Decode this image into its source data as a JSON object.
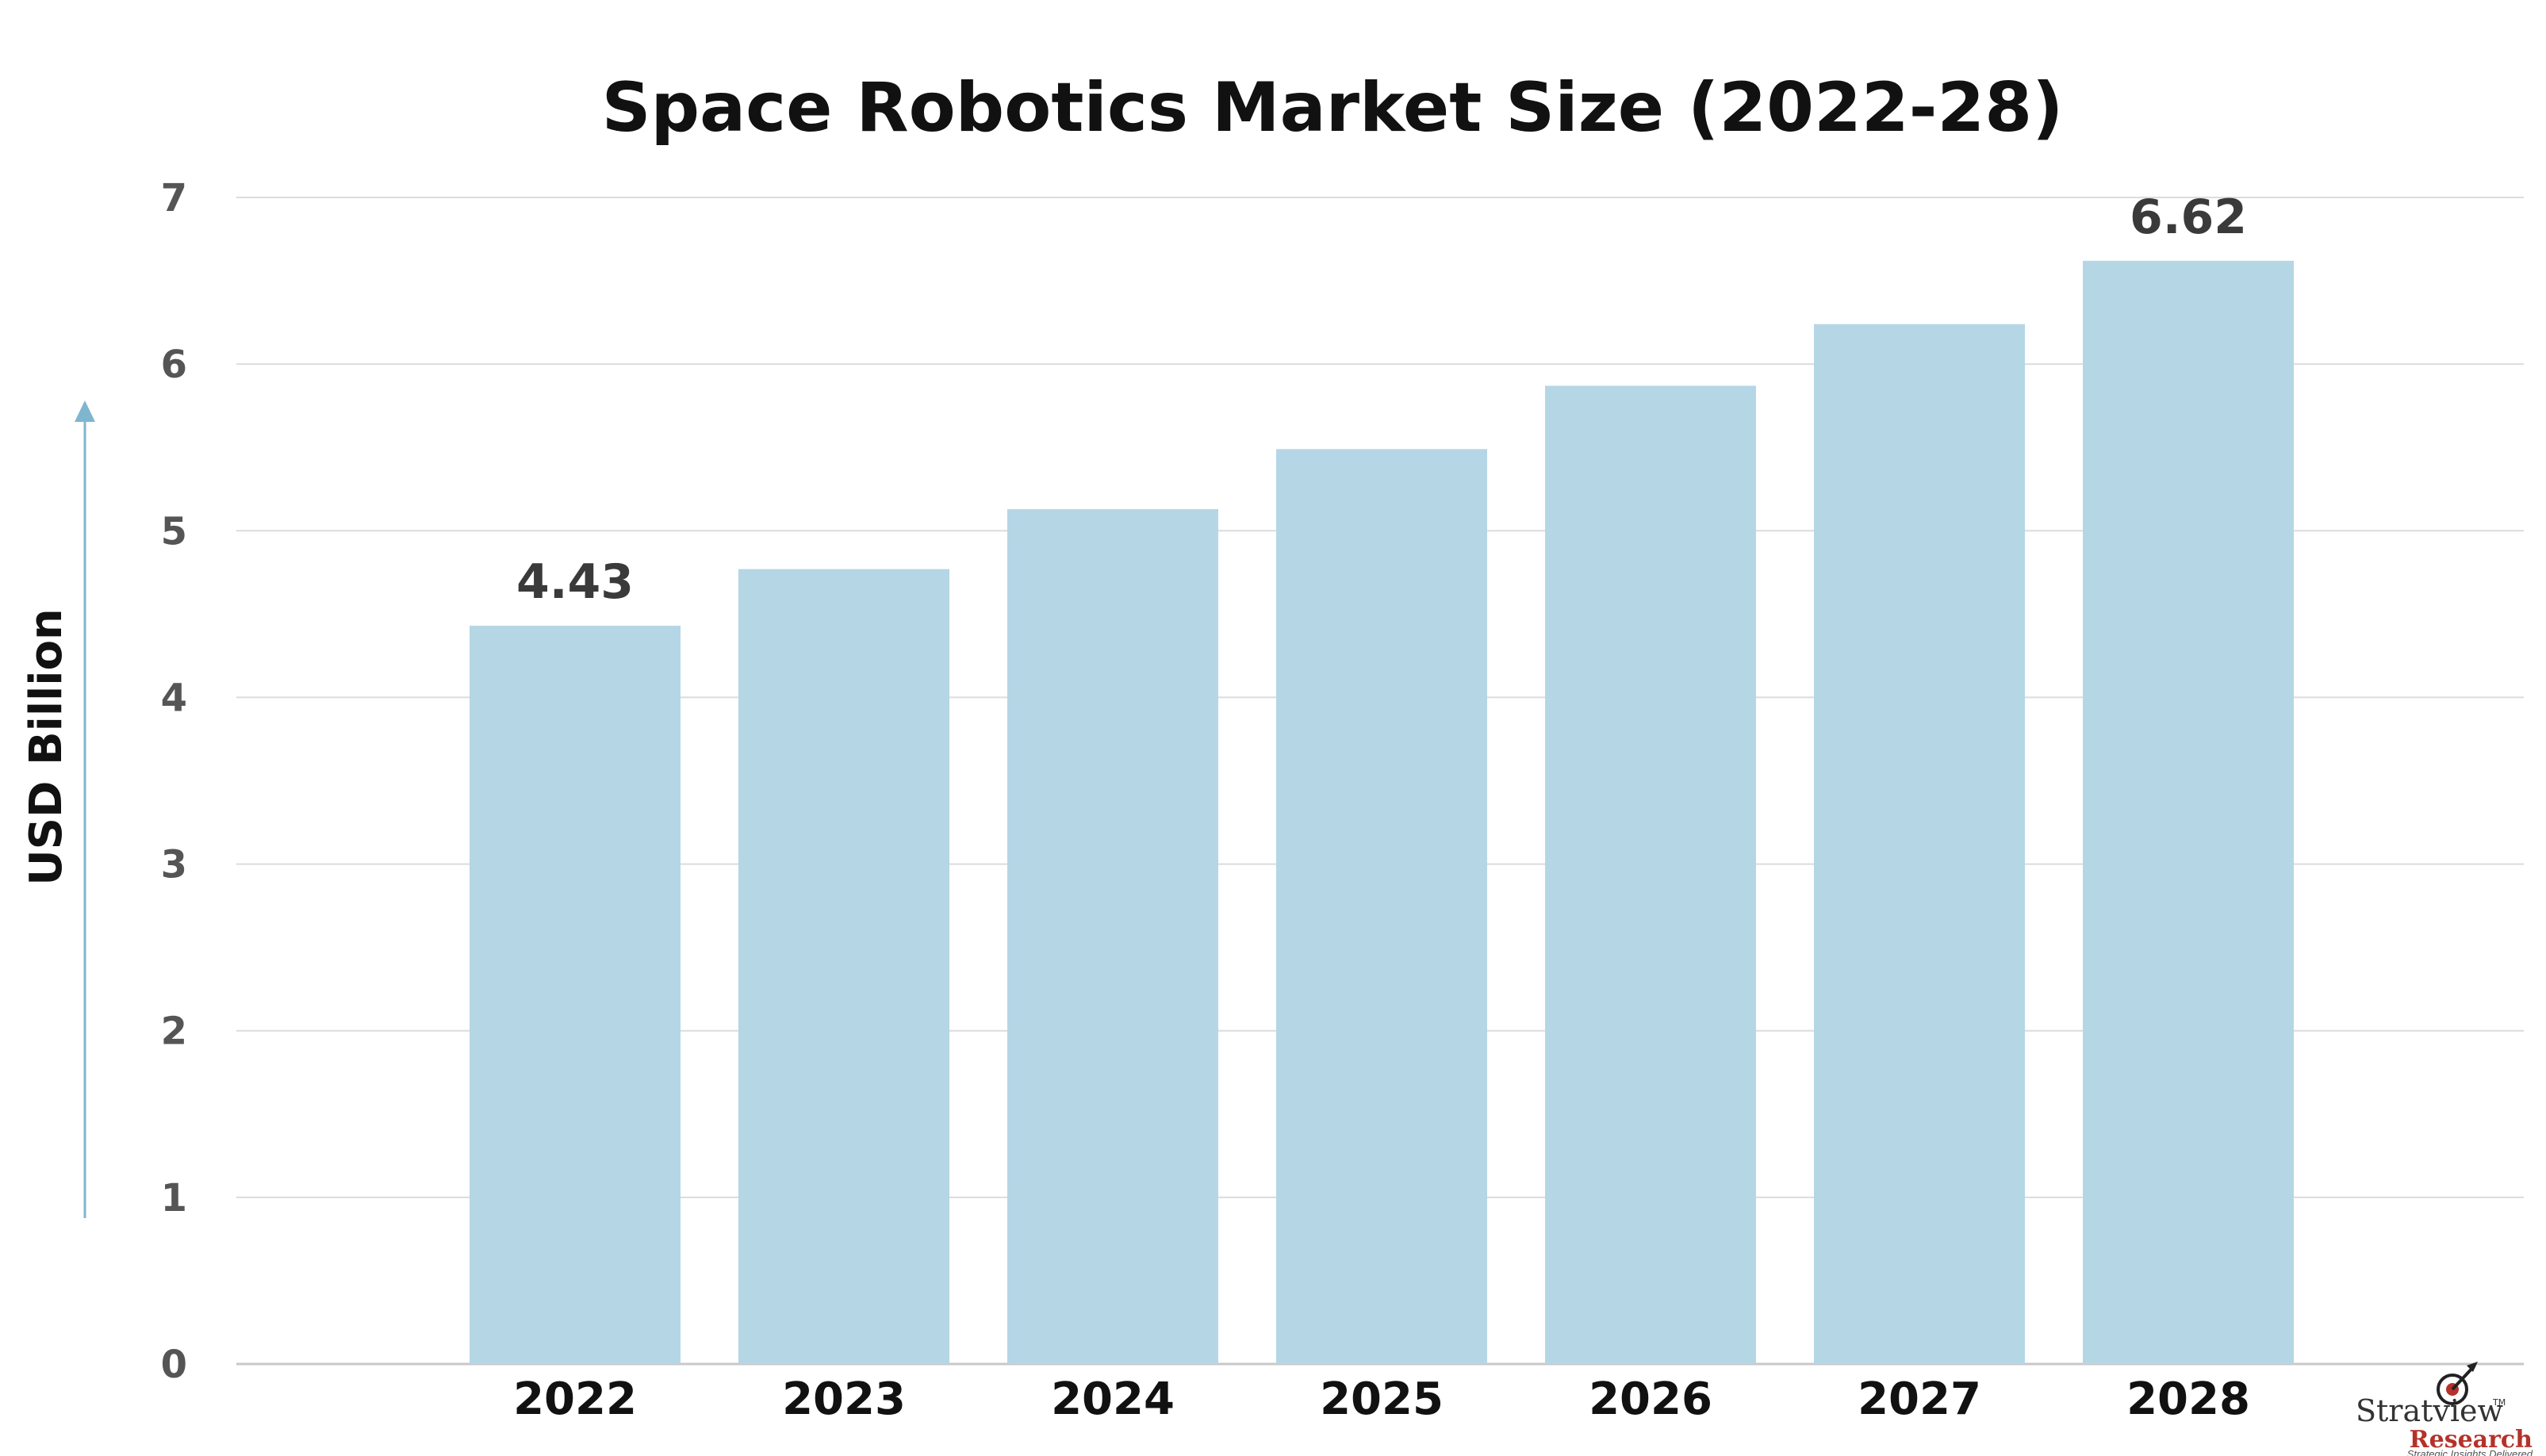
{
  "chart_data": {
    "type": "bar",
    "title": "Space Robotics Market Size (2022-28)",
    "ylabel": "USD Billion",
    "categories": [
      "2022",
      "2023",
      "2024",
      "2025",
      "2026",
      "2027",
      "2028"
    ],
    "values": [
      4.43,
      4.77,
      5.13,
      5.49,
      5.87,
      6.24,
      6.62
    ],
    "data_labels": [
      {
        "index": 0,
        "text": "4.43"
      },
      {
        "index": 6,
        "text": "6.62"
      }
    ],
    "yticks": [
      "0",
      "1",
      "2",
      "3",
      "4",
      "5",
      "6",
      "7"
    ],
    "ylim": [
      0,
      7
    ],
    "grid": true,
    "legend": "none",
    "bar_color": "#b5d6e5",
    "axis_arrow_color": "#7fb6cf"
  },
  "logo": {
    "name": "Stratview",
    "sub": "Research",
    "tagline": "Strategic Insights Delivered",
    "tm": "TM"
  }
}
